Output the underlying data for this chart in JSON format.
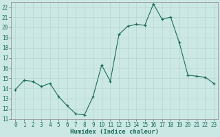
{
  "x": [
    0,
    1,
    2,
    3,
    4,
    5,
    6,
    7,
    8,
    9,
    10,
    11,
    12,
    13,
    14,
    15,
    16,
    17,
    18,
    19,
    20,
    21,
    22,
    23
  ],
  "y": [
    13.9,
    14.8,
    14.7,
    14.2,
    14.5,
    13.2,
    12.3,
    11.5,
    11.4,
    13.2,
    16.3,
    14.7,
    19.3,
    20.1,
    20.3,
    20.2,
    22.3,
    20.8,
    21.0,
    18.5,
    15.3,
    15.2,
    15.1,
    14.5
  ],
  "xlabel": "Humidex (Indice chaleur)",
  "ylim": [
    11,
    22.5
  ],
  "xlim": [
    -0.5,
    23.5
  ],
  "yticks": [
    11,
    12,
    13,
    14,
    15,
    16,
    17,
    18,
    19,
    20,
    21,
    22
  ],
  "xticks": [
    0,
    1,
    2,
    3,
    4,
    5,
    6,
    7,
    8,
    9,
    10,
    11,
    12,
    13,
    14,
    15,
    16,
    17,
    18,
    19,
    20,
    21,
    22,
    23
  ],
  "line_color": "#1a6b5a",
  "bg_color": "#cce8e5",
  "grid_color": "#b0d0cc",
  "tick_fontsize": 5.5,
  "xlabel_fontsize": 6.5
}
